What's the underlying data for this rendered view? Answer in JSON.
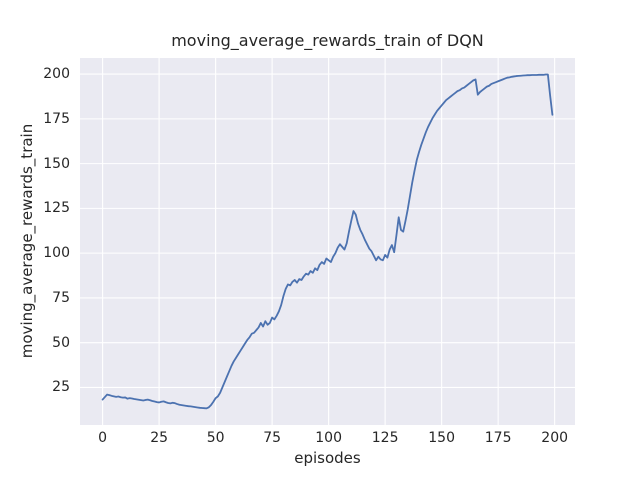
{
  "chart_data": {
    "type": "line",
    "title": "moving_average_rewards_train of DQN",
    "xlabel": "episodes",
    "ylabel": "moving_average_rewards_train",
    "xlim": [
      -10,
      209
    ],
    "ylim": [
      4,
      209
    ],
    "xticks": [
      0,
      25,
      50,
      75,
      100,
      125,
      150,
      175,
      200
    ],
    "yticks": [
      25,
      50,
      75,
      100,
      125,
      150,
      175,
      200
    ],
    "grid": true,
    "legend": "none",
    "line_color": "#4c72b0",
    "plot_background": "#eaeaf2",
    "grid_color": "#ffffff",
    "text_color": "#262626",
    "series": [
      {
        "name": "moving_average_rewards_train",
        "x_start": 0,
        "x_step": 1,
        "y": [
          18.2,
          19.6,
          21.0,
          20.7,
          20.3,
          20.0,
          19.7,
          19.9,
          19.5,
          19.3,
          19.4,
          18.7,
          19.0,
          18.8,
          18.5,
          18.3,
          18.1,
          17.9,
          17.7,
          18.0,
          18.2,
          17.8,
          17.4,
          17.1,
          16.8,
          16.6,
          17.0,
          17.2,
          16.7,
          16.3,
          16.1,
          16.4,
          16.2,
          15.7,
          15.3,
          15.1,
          14.9,
          14.7,
          14.5,
          14.4,
          14.2,
          14.0,
          13.8,
          13.6,
          13.5,
          13.4,
          13.3,
          13.9,
          15.2,
          17.0,
          19.0,
          20.0,
          22.0,
          25.0,
          28.0,
          31.0,
          34.0,
          37.0,
          39.5,
          41.5,
          43.5,
          45.5,
          47.5,
          49.5,
          51.5,
          53.0,
          55.0,
          55.5,
          57.0,
          58.5,
          61.0,
          59.0,
          62.0,
          60.0,
          61.0,
          64.0,
          63.0,
          65.0,
          67.5,
          71.0,
          76.0,
          80.0,
          82.5,
          82.0,
          84.0,
          85.0,
          83.5,
          85.5,
          85.0,
          87.0,
          88.5,
          88.0,
          90.0,
          89.0,
          91.5,
          90.5,
          93.5,
          95.0,
          94.0,
          97.0,
          96.0,
          95.0,
          98.0,
          100.0,
          103.0,
          105.0,
          103.5,
          102.0,
          105.5,
          112.0,
          118.0,
          123.5,
          121.5,
          116.5,
          113.0,
          110.5,
          107.5,
          105.0,
          102.5,
          101.0,
          98.5,
          96.0,
          98.0,
          96.5,
          96.0,
          99.0,
          97.5,
          102.0,
          104.5,
          100.5,
          110.0,
          120.0,
          113.0,
          112.0,
          118.0,
          124.5,
          132.0,
          139.5,
          146.0,
          152.0,
          156.5,
          160.5,
          164.0,
          167.5,
          170.5,
          173.0,
          175.5,
          177.5,
          179.5,
          181.0,
          182.5,
          184.0,
          185.5,
          186.5,
          187.5,
          188.5,
          189.5,
          190.5,
          191.0,
          192.0,
          192.5,
          193.5,
          194.5,
          195.5,
          196.5,
          197.0,
          188.5,
          190.0,
          191.0,
          192.0,
          193.0,
          193.5,
          194.5,
          195.0,
          195.5,
          196.0,
          196.5,
          197.0,
          197.5,
          198.0,
          198.2,
          198.5,
          198.7,
          198.9,
          199.0,
          199.1,
          199.2,
          199.3,
          199.4,
          199.4,
          199.5,
          199.5,
          199.5,
          199.6,
          199.6,
          199.6,
          199.8,
          199.8,
          188.0,
          177.3
        ]
      }
    ]
  }
}
